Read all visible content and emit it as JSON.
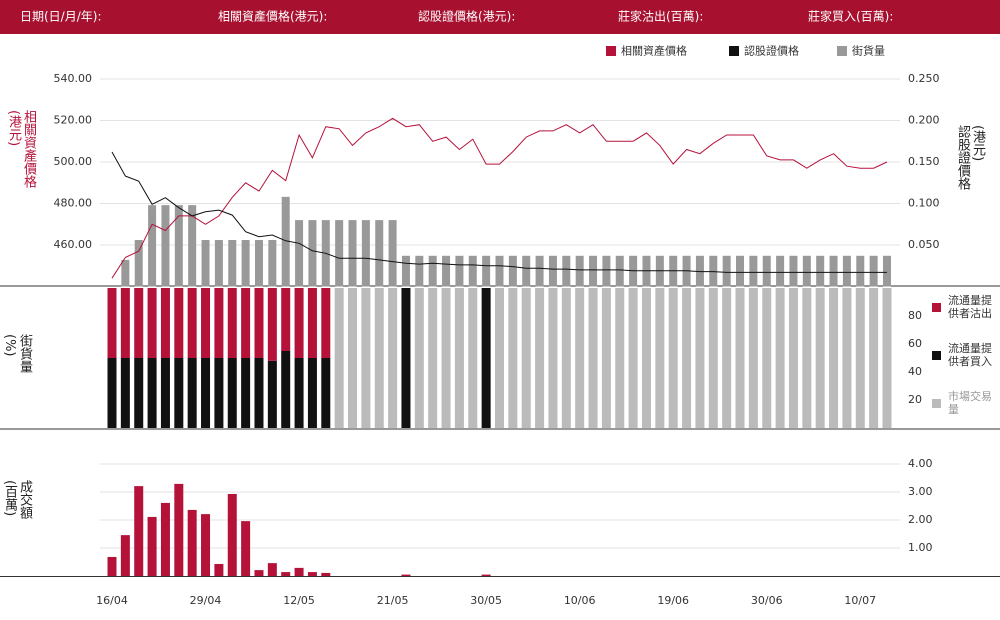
{
  "header": {
    "labels": [
      "日期(日/月/年):",
      "相關資產價格(港元):",
      "認股證價格(港元):",
      "莊家沽出(百萬):",
      "莊家買入(百萬):"
    ]
  },
  "chart_data": [
    {
      "type": "line",
      "ylabel": "相關資產價格(港元)",
      "y2label": "認股證價格(港元)",
      "ylim": [
        440,
        540
      ],
      "yticks": [
        {
          "value": 460,
          "label": "460.00"
        },
        {
          "value": 480,
          "label": "480.00"
        },
        {
          "value": 500,
          "label": "500.00"
        },
        {
          "value": 520,
          "label": "520.00"
        },
        {
          "value": 540,
          "label": "540.00"
        }
      ],
      "y2lim": [
        0,
        0.25
      ],
      "y2ticks": [
        {
          "value": 0.05,
          "label": "0.050"
        },
        {
          "value": 0.1,
          "label": "0.100"
        },
        {
          "value": 0.15,
          "label": "0.150"
        },
        {
          "value": 0.2,
          "label": "0.200"
        },
        {
          "value": 0.25,
          "label": "0.250"
        }
      ],
      "grid": true,
      "legend": "top-right",
      "series": [
        {
          "name": "相關資產價格",
          "color": "#b5123a",
          "values": [
            444,
            454,
            457,
            470,
            467,
            474,
            474,
            470,
            474,
            483,
            490,
            486,
            496,
            491,
            513,
            502,
            517,
            516,
            508,
            514,
            517,
            521,
            517,
            518,
            510,
            512,
            506,
            511,
            499,
            499,
            505,
            512,
            515,
            515,
            518,
            514,
            518,
            510,
            510,
            510,
            514,
            508,
            499,
            506,
            504,
            509,
            513,
            513,
            513,
            503,
            501,
            501,
            497,
            501,
            504,
            498,
            497,
            497,
            500
          ]
        },
        {
          "name": "認股證價格",
          "color": "#111111",
          "axis": "y2",
          "values": [
            0.162,
            0.133,
            0.127,
            0.099,
            0.107,
            0.095,
            0.085,
            0.09,
            0.092,
            0.086,
            0.066,
            0.06,
            0.062,
            0.055,
            0.052,
            0.043,
            0.04,
            0.034,
            0.034,
            0.034,
            0.032,
            0.03,
            0.028,
            0.027,
            0.028,
            0.027,
            0.026,
            0.026,
            0.025,
            0.025,
            0.024,
            0.022,
            0.022,
            0.021,
            0.021,
            0.02,
            0.02,
            0.02,
            0.02,
            0.019,
            0.019,
            0.019,
            0.019,
            0.019,
            0.018,
            0.018,
            0.017,
            0.017,
            0.017,
            0.017,
            0.017,
            0.017,
            0.017,
            0.017,
            0.017,
            0.017,
            0.017,
            0.017,
            0.017
          ]
        },
        {
          "name": "街貨量",
          "color": "#999999",
          "axis": "y2",
          "type": "bar",
          "values": [
            null,
            0.032,
            0.056,
            0.098,
            0.098,
            0.098,
            0.098,
            0.056,
            0.056,
            0.056,
            0.056,
            0.056,
            0.056,
            0.108,
            0.08,
            0.08,
            0.08,
            0.08,
            0.08,
            0.08,
            0.08,
            0.08,
            0.037,
            0.037,
            0.037,
            0.037,
            0.037,
            0.037,
            0.037,
            0.037,
            0.037,
            0.037,
            0.037,
            0.037,
            0.037,
            0.037,
            0.037,
            0.037,
            0.037,
            0.037,
            0.037,
            0.037,
            0.037,
            0.037,
            0.037,
            0.037,
            0.037,
            0.037,
            0.037,
            0.037,
            0.037,
            0.037,
            0.037,
            0.037,
            0.037,
            0.037,
            0.037,
            0.037,
            0.037
          ]
        }
      ]
    },
    {
      "type": "bar",
      "stacked": true,
      "ylabel": "街貨量(%)",
      "ylim": [
        0,
        100
      ],
      "yticks": [
        20,
        40,
        60,
        80
      ],
      "legend": "right",
      "series": [
        {
          "name": "流通量提供者沽出",
          "color": "#b5123a",
          "values": [
            50,
            50,
            50,
            50,
            50,
            50,
            50,
            50,
            50,
            50,
            50,
            50,
            52,
            45,
            50,
            50,
            50,
            null,
            null,
            null,
            null,
            null,
            null,
            null,
            null,
            null,
            null,
            null,
            null,
            null,
            null,
            null,
            null,
            null,
            null,
            null,
            null,
            null,
            null,
            null,
            null,
            null,
            null,
            null,
            null,
            null,
            null,
            null,
            null,
            null,
            null,
            null,
            null,
            null,
            null,
            null,
            null,
            null,
            null
          ]
        },
        {
          "name": "流通量提供者買入",
          "color": "#111111",
          "values": [
            50,
            50,
            50,
            50,
            50,
            50,
            50,
            50,
            50,
            50,
            50,
            50,
            48,
            55,
            50,
            50,
            50,
            null,
            null,
            null,
            null,
            null,
            100,
            null,
            null,
            null,
            null,
            null,
            100,
            null,
            null,
            null,
            null,
            null,
            null,
            null,
            null,
            null,
            null,
            null,
            null,
            null,
            null,
            null,
            null,
            null,
            null,
            null,
            null,
            null,
            null,
            null,
            null,
            null,
            null,
            null,
            null,
            null,
            null
          ]
        },
        {
          "name": "市場交易量",
          "color": "#bbbbbb",
          "values": [
            null,
            null,
            null,
            null,
            null,
            null,
            null,
            null,
            null,
            null,
            null,
            null,
            null,
            null,
            null,
            null,
            null,
            100,
            100,
            100,
            100,
            100,
            null,
            100,
            100,
            100,
            100,
            100,
            null,
            100,
            100,
            100,
            100,
            100,
            100,
            100,
            100,
            100,
            100,
            100,
            100,
            100,
            100,
            100,
            100,
            100,
            100,
            100,
            100,
            100,
            100,
            100,
            100,
            100,
            100,
            100,
            100,
            100,
            100
          ]
        }
      ]
    },
    {
      "type": "bar",
      "ylabel": "成交額(百萬)",
      "ylim": [
        0,
        5
      ],
      "yticks": [
        {
          "value": 1,
          "label": "1.00"
        },
        {
          "value": 2,
          "label": "2.00"
        },
        {
          "value": 3,
          "label": "3.00"
        },
        {
          "value": 4,
          "label": "4.00"
        }
      ],
      "grid": true,
      "color": "#b5123a",
      "categories": [
        "16/04",
        null,
        null,
        null,
        null,
        null,
        null,
        "29/04",
        null,
        null,
        null,
        null,
        null,
        null,
        "12/05",
        null,
        null,
        null,
        null,
        null,
        null,
        "21/05",
        null,
        null,
        null,
        null,
        null,
        null,
        "30/05",
        null,
        null,
        null,
        null,
        null,
        null,
        "10/06",
        null,
        null,
        null,
        null,
        null,
        null,
        "19/06",
        null,
        null,
        null,
        null,
        null,
        null,
        "30/06",
        null,
        null,
        null,
        null,
        null,
        null,
        "10/07",
        null,
        null
      ],
      "values": [
        0.68,
        1.46,
        3.21,
        2.11,
        2.61,
        3.29,
        2.36,
        2.21,
        0.43,
        2.93,
        1.96,
        0.21,
        0.46,
        0.14,
        0.29,
        0.14,
        0.11,
        0,
        0,
        0,
        0,
        0,
        0.05,
        0,
        0,
        0,
        0,
        0,
        0.05,
        0,
        0,
        0,
        0,
        0,
        0,
        0,
        0,
        0,
        0,
        0,
        0,
        0,
        0,
        0,
        0,
        0,
        0,
        0,
        0,
        0,
        0,
        0,
        0,
        0,
        0,
        0,
        0,
        0,
        0
      ]
    }
  ]
}
